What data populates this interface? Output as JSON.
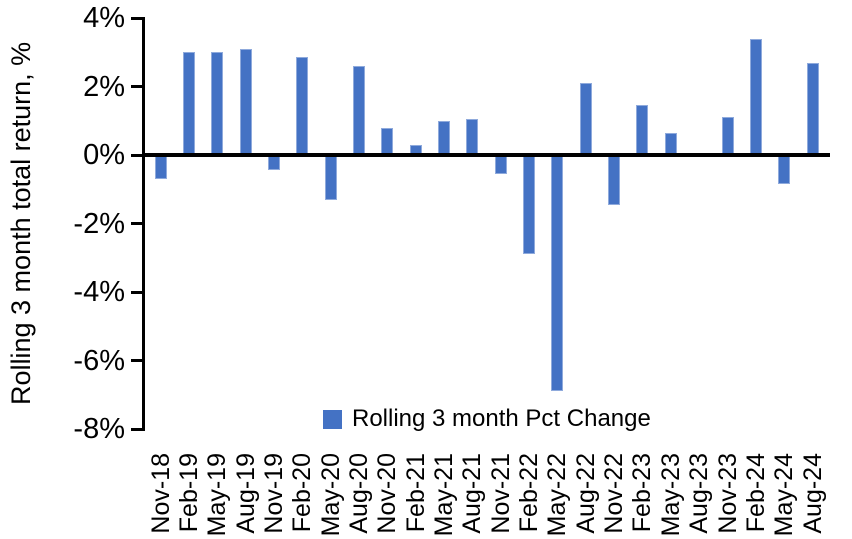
{
  "chart_data": {
    "type": "bar",
    "title": "",
    "xlabel": "",
    "ylabel": "Rolling 3 month total return, %",
    "categories": [
      "Nov-18",
      "Feb-19",
      "May-19",
      "Aug-19",
      "Nov-19",
      "Feb-20",
      "May-20",
      "Aug-20",
      "Nov-20",
      "Feb-21",
      "May-21",
      "Aug-21",
      "Nov-21",
      "Feb-22",
      "May-22",
      "Aug-22",
      "Nov-22",
      "Feb-23",
      "May-23",
      "Aug-23",
      "Nov-23",
      "Feb-24",
      "May-24",
      "Aug-24"
    ],
    "values": [
      -0.7,
      3.0,
      3.0,
      3.1,
      -0.45,
      2.85,
      -1.3,
      2.6,
      0.8,
      0.3,
      1.0,
      1.05,
      -0.55,
      -2.9,
      -6.9,
      2.1,
      -1.45,
      1.45,
      0.65,
      0.0,
      1.1,
      3.4,
      -0.85,
      2.7
    ],
    "ylim": [
      -8,
      4
    ],
    "ytick_labels": [
      "4%",
      "2%",
      "0%",
      "-2%",
      "-4%",
      "-6%",
      "-8%"
    ],
    "ytick_values": [
      4,
      2,
      0,
      -2,
      -4,
      -6,
      -8
    ],
    "grid": "off",
    "legend": {
      "label": "Rolling 3 month Pct Change",
      "position": "bottom-center-inside"
    },
    "colors": {
      "bar_fill": "#4472C4",
      "bar_edge": "#8FAADC",
      "axis": "#000000",
      "text": "#000000",
      "background": "#FFFFFF"
    }
  }
}
